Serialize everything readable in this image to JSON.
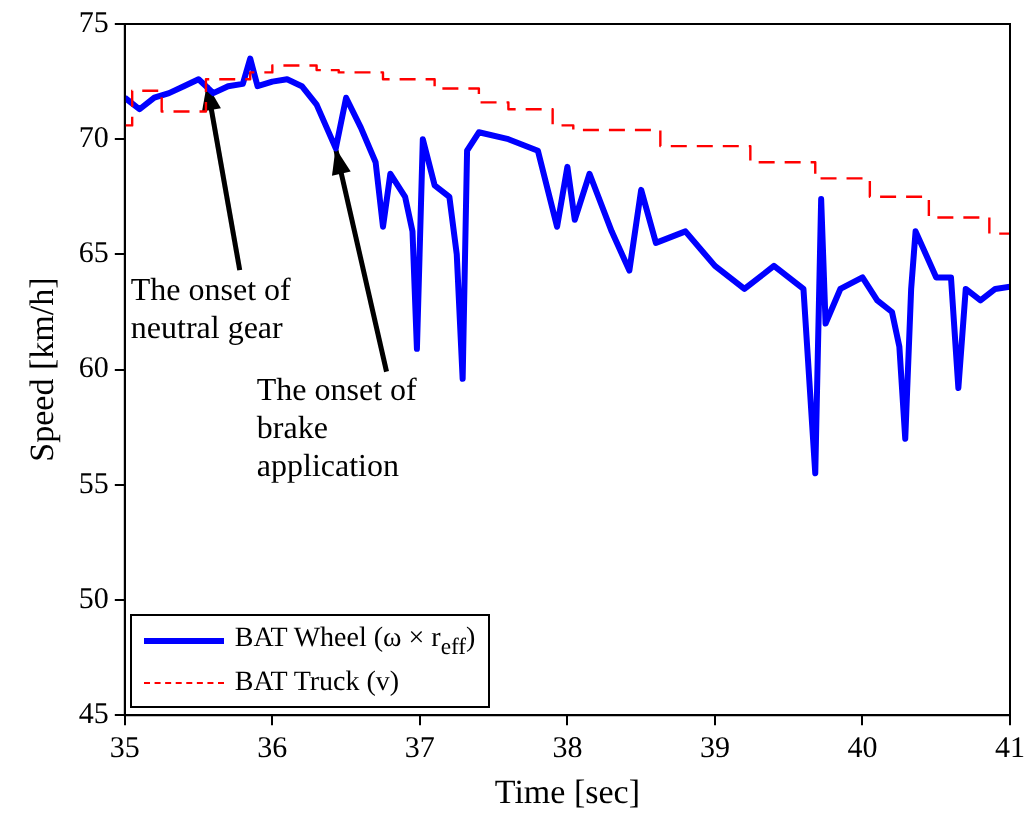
{
  "chart_data": {
    "type": "line",
    "xlabel": "Time [sec]",
    "ylabel": "Speed [km/h]",
    "xlim": [
      35,
      41
    ],
    "xticks": [
      35,
      36,
      37,
      38,
      39,
      40,
      41
    ],
    "ylim": [
      45,
      75
    ],
    "yticks": [
      45,
      50,
      55,
      60,
      65,
      70,
      75
    ],
    "grid": false,
    "legend": "bottom left",
    "marker": "none",
    "series": [
      {
        "name": "BAT Wheel (ω × r$_{eff}$)",
        "type": "line",
        "line_style": "solid",
        "color": "#0000ff",
        "x": [
          35.0,
          35.1,
          35.2,
          35.3,
          35.4,
          35.5,
          35.6,
          35.7,
          35.8,
          35.85,
          35.9,
          36.0,
          36.1,
          36.2,
          36.3,
          36.43,
          36.5,
          36.6,
          36.7,
          36.75,
          36.8,
          36.9,
          36.95,
          36.98,
          37.02,
          37.1,
          37.2,
          37.25,
          37.29,
          37.32,
          37.4,
          37.6,
          37.8,
          37.93,
          38.0,
          38.05,
          38.15,
          38.3,
          38.42,
          38.5,
          38.6,
          38.8,
          39.0,
          39.2,
          39.4,
          39.6,
          39.68,
          39.72,
          39.75,
          39.85,
          40.0,
          40.1,
          40.2,
          40.25,
          40.29,
          40.33,
          40.36,
          40.5,
          40.6,
          40.65,
          40.7,
          40.8,
          40.9,
          41.0
        ],
        "values": [
          71.8,
          71.3,
          71.8,
          72.0,
          72.3,
          72.6,
          72.0,
          72.3,
          72.4,
          73.5,
          72.3,
          72.5,
          72.6,
          72.3,
          71.5,
          69.6,
          71.8,
          70.5,
          69.0,
          66.2,
          68.5,
          67.5,
          66.0,
          60.9,
          70.0,
          68.0,
          67.5,
          65.0,
          59.6,
          69.5,
          70.3,
          70.0,
          69.5,
          66.2,
          68.8,
          66.5,
          68.5,
          66.0,
          64.3,
          67.8,
          65.5,
          66.0,
          64.5,
          63.5,
          64.5,
          63.5,
          55.5,
          67.4,
          62.0,
          63.5,
          64.0,
          63.0,
          62.5,
          61.0,
          57.0,
          63.5,
          66.0,
          64.0,
          64.0,
          59.2,
          63.5,
          63.0,
          63.5,
          63.6
        ]
      },
      {
        "name": "BAT Truck (v)",
        "type": "step",
        "line_style": "dashed",
        "color": "#ff0000",
        "x": [
          35.0,
          35.05,
          35.25,
          35.55,
          35.85,
          36.0,
          36.3,
          36.45,
          36.75,
          37.1,
          37.4,
          37.6,
          37.9,
          38.04,
          38.63,
          39.24,
          39.68,
          40.05,
          40.45,
          40.86,
          41.0
        ],
        "values": [
          70.6,
          72.1,
          71.2,
          72.6,
          72.9,
          73.2,
          73.0,
          72.9,
          72.6,
          72.2,
          71.6,
          71.3,
          70.6,
          70.4,
          69.7,
          69.0,
          68.3,
          67.5,
          66.6,
          65.9,
          65.9
        ]
      }
    ],
    "annotations": [
      {
        "text": "The onset of neutral gear",
        "x": 35.55,
        "y": 72.4
      },
      {
        "text": "The onset of brake application",
        "x": 36.43,
        "y": 69.6
      }
    ]
  }
}
